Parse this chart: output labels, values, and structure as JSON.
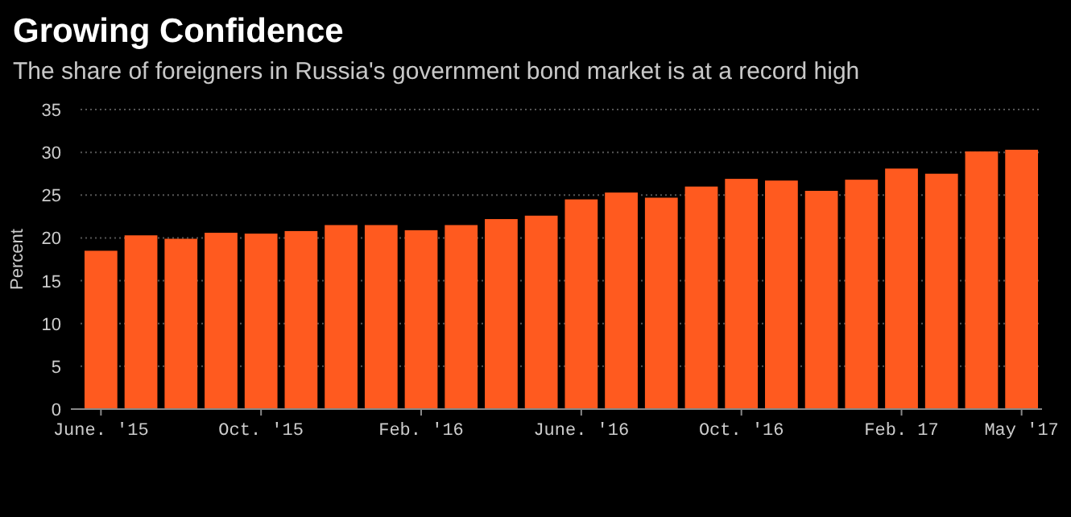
{
  "chart_data": {
    "type": "bar",
    "title": "Growing Confidence",
    "subtitle": "The share of foreigners in Russia's government bond market is at a record high",
    "ylabel": "Percent",
    "categories": [
      "June. '15",
      null,
      null,
      null,
      "Oct. '15",
      null,
      null,
      null,
      "Feb. '16",
      null,
      null,
      null,
      "June. '16",
      null,
      null,
      null,
      "Oct. '16",
      null,
      null,
      null,
      "Feb. 17",
      null,
      null,
      "May '17"
    ],
    "values": [
      18.5,
      20.3,
      19.9,
      20.6,
      20.5,
      20.8,
      21.5,
      21.5,
      20.9,
      21.5,
      22.2,
      22.6,
      24.5,
      25.3,
      24.7,
      26.0,
      26.9,
      26.7,
      25.5,
      26.8,
      28.1,
      27.5,
      30.1,
      30.3
    ],
    "color": "#ff5a1f",
    "ylim": [
      0,
      35
    ],
    "yticks": [
      0,
      5,
      10,
      15,
      20,
      25,
      30,
      35
    ],
    "grid": "y"
  }
}
